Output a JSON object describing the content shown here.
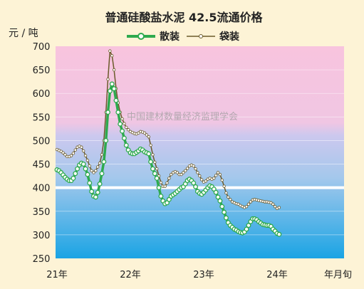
{
  "chart_data": {
    "type": "line",
    "title": "普通硅酸盐水泥 42.5流通价格",
    "ylabel": "元 / 吨",
    "xlabel": "年月旬",
    "ylim": [
      250,
      700
    ],
    "yticks": [
      700,
      650,
      600,
      550,
      500,
      450,
      400,
      350,
      300,
      250
    ],
    "xticks": [
      "21年",
      "22年",
      "23年",
      "24年"
    ],
    "x_period": "10-day periods (旬), 36 per year, starting 21年 January first period",
    "reference_line": 400,
    "legend_position": "top",
    "watermark": "中国建材数量经济监理学会",
    "series": [
      {
        "name": "散装",
        "color": "#2eaa4e",
        "values": [
          438,
          436,
          432,
          427,
          422,
          418,
          415,
          415,
          420,
          430,
          440,
          448,
          452,
          450,
          440,
          428,
          410,
          392,
          382,
          380,
          390,
          408,
          430,
          455,
          500,
          560,
          605,
          620,
          610,
          585,
          560,
          535,
          520,
          505,
          490,
          480,
          474,
          472,
          472,
          475,
          478,
          482,
          480,
          476,
          474,
          472,
          455,
          440,
          430,
          420,
          400,
          382,
          372,
          366,
          368,
          375,
          382,
          385,
          388,
          392,
          396,
          400,
          402,
          408,
          415,
          418,
          415,
          410,
          402,
          392,
          388,
          386,
          390,
          395,
          400,
          404,
          402,
          397,
          390,
          380,
          372,
          360,
          348,
          336,
          326,
          320,
          316,
          312,
          310,
          307,
          305,
          304,
          306,
          312,
          320,
          328,
          334,
          334,
          332,
          328,
          325,
          322,
          321,
          320,
          320,
          318,
          312,
          308,
          303,
          301
        ]
      },
      {
        "name": "袋装",
        "color": "#6b5a2a",
        "values": [
          481,
          479,
          477,
          474,
          470,
          466,
          466,
          468,
          473,
          480,
          486,
          488,
          486,
          478,
          468,
          458,
          446,
          436,
          432,
          436,
          444,
          452,
          470,
          500,
          560,
          630,
          690,
          680,
          650,
          610,
          580,
          560,
          546,
          536,
          528,
          523,
          519,
          517,
          515,
          514,
          516,
          519,
          518,
          516,
          512,
          508,
          490,
          470,
          454,
          440,
          425,
          411,
          403,
          403,
          410,
          420,
          428,
          432,
          434,
          432,
          428,
          428,
          432,
          436,
          441,
          446,
          448,
          446,
          440,
          432,
          425,
          417,
          412,
          414,
          418,
          420,
          418,
          420,
          426,
          432,
          428,
          416,
          403,
          389,
          380,
          375,
          370,
          368,
          366,
          365,
          362,
          360,
          358,
          360,
          365,
          370,
          374,
          375,
          374,
          373,
          372,
          371,
          370,
          370,
          369,
          368,
          365,
          360,
          356,
          358
        ]
      }
    ]
  }
}
